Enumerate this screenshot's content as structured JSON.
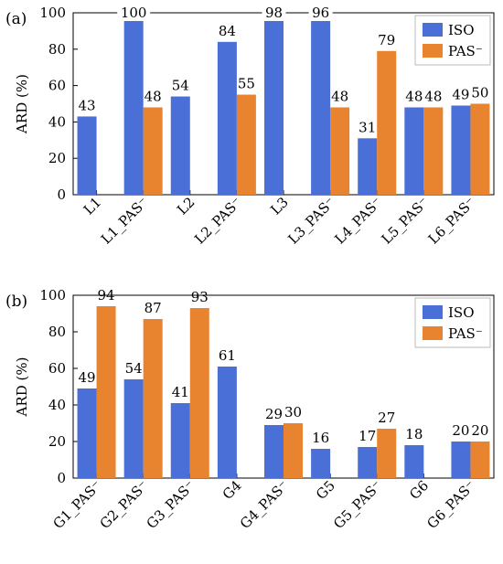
{
  "chart_data": [
    {
      "type": "bar",
      "panel_label": "(a)",
      "ylabel": "ARD (%)",
      "ylim": [
        0,
        100
      ],
      "yticks": [
        "0",
        "20",
        "40",
        "60",
        "80",
        "100"
      ],
      "grid": false,
      "legend_position": "top-right",
      "categories": [
        "L1",
        "L1_PAS⁻",
        "L2",
        "L2_PAS⁻",
        "L3",
        "L3_PAS⁻",
        "L4_PAS⁻",
        "L5_PAS⁻",
        "L6_PAS⁻"
      ],
      "series": [
        {
          "name": "ISO",
          "color": "#4A6FD6",
          "values": [
            43,
            100,
            54,
            84,
            98,
            96,
            31,
            48,
            49
          ]
        },
        {
          "name": "PAS⁻",
          "color": "#E8832F",
          "values": [
            null,
            48,
            null,
            55,
            null,
            48,
            79,
            48,
            50
          ]
        }
      ]
    },
    {
      "type": "bar",
      "panel_label": "(b)",
      "ylabel": "ARD (%)",
      "ylim": [
        0,
        100
      ],
      "yticks": [
        "0",
        "20",
        "40",
        "60",
        "80",
        "100"
      ],
      "grid": false,
      "legend_position": "top-right",
      "categories": [
        "G1_PAS⁻",
        "G2_PAS⁻",
        "G3_PAS⁻",
        "G4",
        "G4_PAS⁻",
        "G5",
        "G5_PAS⁻",
        "G6",
        "G6_PAS⁻"
      ],
      "series": [
        {
          "name": "ISO",
          "color": "#4A6FD6",
          "values": [
            49,
            54,
            41,
            61,
            29,
            16,
            17,
            18,
            20
          ]
        },
        {
          "name": "PAS⁻",
          "color": "#E8832F",
          "values": [
            94,
            87,
            93,
            null,
            30,
            null,
            27,
            null,
            20
          ]
        }
      ]
    }
  ]
}
